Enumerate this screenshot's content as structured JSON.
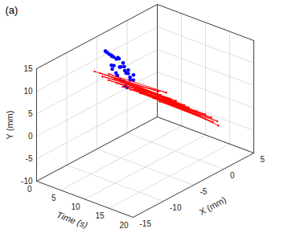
{
  "chart_data": {
    "type": "scatter3d",
    "panel_label": "(a)",
    "x_label": "X (mm)",
    "y_label": "Y (mm)",
    "time_label": "Time (s)",
    "xlim": [
      -15,
      5
    ],
    "xticks": [
      -15,
      -10,
      -5,
      0,
      5
    ],
    "ylim": [
      -10,
      15
    ],
    "yticks": [
      -10,
      -5,
      0,
      5,
      10,
      15
    ],
    "timelim": [
      0,
      20
    ],
    "timeticks": [
      0,
      5,
      10,
      15,
      20
    ],
    "grid": true,
    "series": [
      {
        "type": "scatter",
        "color": "#0000ff",
        "marker": "circle",
        "time": [
          0.2,
          0.3,
          0.4,
          0.5,
          0.6,
          0.7,
          0.8,
          0.9,
          1.0,
          1.1,
          0.25,
          0.35,
          0.45,
          0.55,
          0.65,
          0.75,
          0.85,
          0.95,
          1.05,
          1.15,
          0.3,
          0.5,
          0.7,
          0.9,
          1.1,
          0.4,
          0.6,
          0.8,
          1.0,
          1.2
        ],
        "x": [
          -3.5,
          -2.8,
          -2.1,
          -3.0,
          -1.5,
          -2.4,
          -0.8,
          -1.9,
          -0.3,
          -1.2,
          -3.8,
          -2.5,
          -1.7,
          -2.9,
          -1.0,
          -2.2,
          -0.5,
          -1.4,
          0.2,
          -0.9,
          -3.2,
          -2.6,
          -1.8,
          -1.1,
          -0.4,
          -2.9,
          -2.0,
          -1.3,
          -0.6,
          0.1
        ],
        "y": [
          10.5,
          9.2,
          8.1,
          7.4,
          6.0,
          5.3,
          4.2,
          3.5,
          2.4,
          1.8,
          11.0,
          8.8,
          7.9,
          6.5,
          5.7,
          4.6,
          3.9,
          2.9,
          2.0,
          1.2,
          9.9,
          7.0,
          6.2,
          5.0,
          3.1,
          9.5,
          8.4,
          6.8,
          4.8,
          3.3
        ]
      },
      {
        "type": "line",
        "color": "#ff0000",
        "marker": "circle",
        "time": [
          1.0,
          1.35,
          1.7,
          2.05,
          2.4,
          2.75,
          3.1,
          3.45,
          3.8,
          4.15,
          4.5,
          4.85,
          5.2,
          5.55,
          5.9,
          6.25,
          6.6,
          6.95,
          7.3,
          7.65,
          8.0,
          8.35,
          8.7,
          9.05,
          9.4,
          9.75,
          10.1,
          10.45,
          10.8,
          11.15,
          11.5,
          11.85,
          12.2,
          12.55,
          12.9,
          13.25,
          13.6,
          13.95,
          14.3,
          14.65
        ],
        "x": [
          -6.2,
          4.1,
          -5.8,
          3.9,
          -6.0,
          4.3,
          -5.5,
          4.0,
          -6.1,
          3.8,
          -5.7,
          4.2,
          -5.9,
          3.7,
          -5.6,
          4.0,
          -6.0,
          3.9,
          -5.4,
          4.1,
          -5.8,
          3.6,
          -5.7,
          4.0,
          -5.5,
          3.8,
          -5.9,
          3.7,
          -5.3,
          4.0,
          -5.6,
          3.5,
          -5.4,
          3.9,
          -5.2,
          3.6,
          -5.5,
          3.8,
          -5.1,
          3.4
        ],
        "y": [
          8.5,
          -3.2,
          8.1,
          -3.5,
          7.8,
          -3.0,
          8.3,
          -3.8,
          7.6,
          -3.4,
          7.9,
          -3.9,
          7.4,
          -3.6,
          7.7,
          -4.1,
          7.2,
          -3.8,
          7.5,
          -4.2,
          7.0,
          -3.9,
          7.3,
          -4.4,
          6.9,
          -4.0,
          7.1,
          -4.5,
          6.7,
          -4.2,
          6.9,
          -4.6,
          6.5,
          -4.3,
          6.8,
          -4.8,
          6.4,
          -4.5,
          6.6,
          -4.9
        ]
      }
    ]
  }
}
